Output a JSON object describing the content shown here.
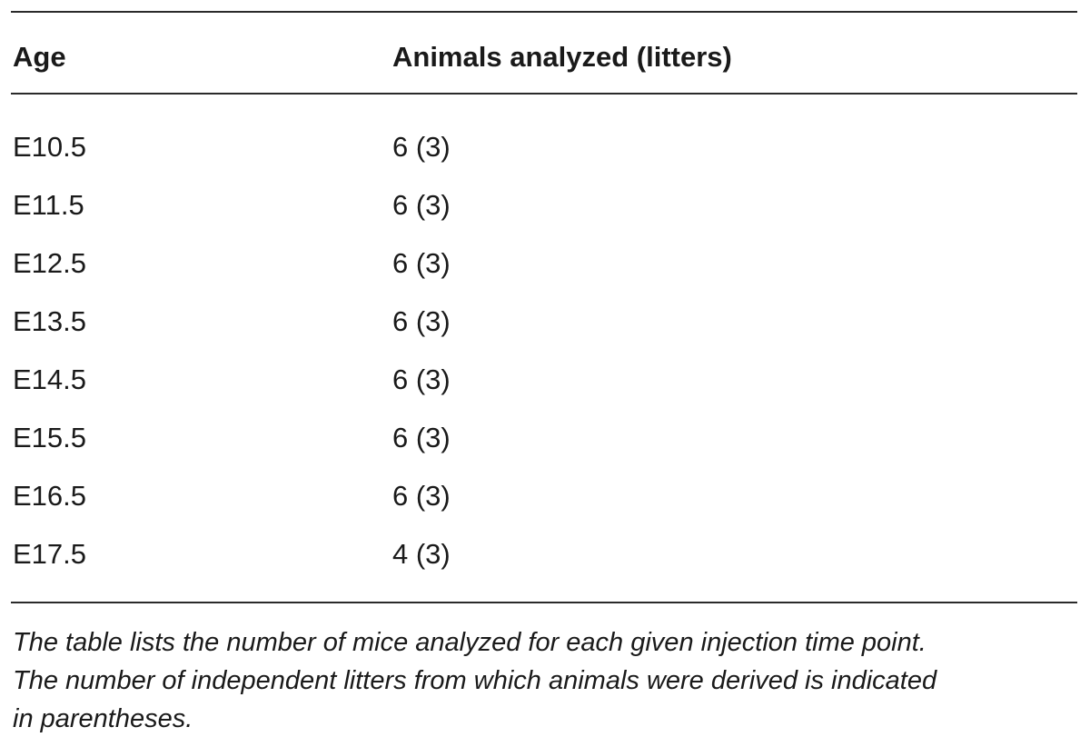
{
  "table": {
    "columns": [
      "Age",
      "Animals analyzed (litters)"
    ],
    "rows": [
      {
        "age": "E10.5",
        "animals": "6 (3)"
      },
      {
        "age": "E11.5",
        "animals": "6 (3)"
      },
      {
        "age": "E12.5",
        "animals": "6 (3)"
      },
      {
        "age": "E13.5",
        "animals": "6 (3)"
      },
      {
        "age": "E14.5",
        "animals": "6 (3)"
      },
      {
        "age": "E15.5",
        "animals": "6 (3)"
      },
      {
        "age": "E16.5",
        "animals": "6 (3)"
      },
      {
        "age": "E17.5",
        "animals": "4 (3)"
      }
    ]
  },
  "footnote": {
    "lines": [
      "The table lists the number of mice analyzed for each given injection time point.",
      "The number of independent litters from which animals were derived is indicated",
      "in parentheses."
    ]
  }
}
